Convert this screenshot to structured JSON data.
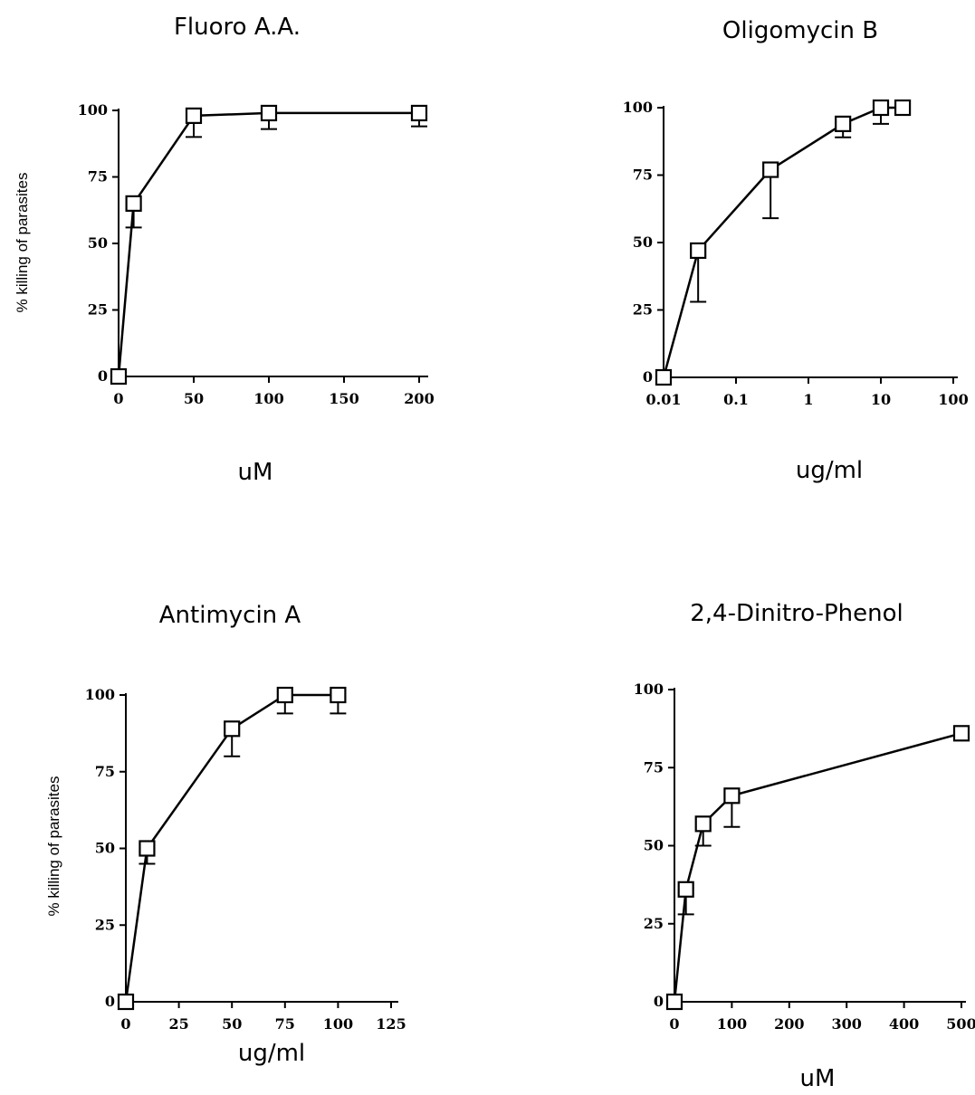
{
  "chart_data": [
    {
      "type": "line",
      "title": "Fluoro A.A.",
      "xlabel": "uM",
      "ylabel": "% killing of parasites",
      "xscale": "linear",
      "xticks": [
        "0",
        "50",
        "100",
        "150",
        "200"
      ],
      "xtick_values": [
        0,
        50,
        100,
        150,
        200
      ],
      "yticks": [
        "0",
        "25",
        "50",
        "75",
        "100"
      ],
      "ytick_values": [
        0,
        25,
        50,
        75,
        100
      ],
      "xlim": [
        0,
        200
      ],
      "ylim": [
        0,
        100
      ],
      "grid": false,
      "marker": "open-square",
      "series": [
        {
          "x": [
            0,
            10,
            50,
            100,
            200
          ],
          "y": [
            0,
            65,
            98,
            99,
            99
          ],
          "error_low": [
            0,
            56,
            90,
            93,
            94
          ]
        }
      ]
    },
    {
      "type": "line",
      "title": "Oligomycin B",
      "xlabel": "ug/ml",
      "ylabel": "",
      "xscale": "log",
      "xticks": [
        "0.01",
        "0.1",
        "1",
        "10",
        "100"
      ],
      "xtick_values": [
        0.01,
        0.1,
        1,
        10,
        100
      ],
      "yticks": [
        "0",
        "25",
        "50",
        "75",
        "100"
      ],
      "ytick_values": [
        0,
        25,
        50,
        75,
        100
      ],
      "xlim": [
        0.01,
        100
      ],
      "ylim": [
        0,
        100
      ],
      "grid": false,
      "marker": "open-square",
      "series": [
        {
          "x": [
            0.01,
            0.03,
            0.3,
            3,
            10,
            20
          ],
          "y": [
            0,
            47,
            77,
            94,
            100,
            100
          ],
          "error_low": [
            0,
            28,
            59,
            89,
            94,
            100
          ]
        }
      ]
    },
    {
      "type": "line",
      "title": "Antimycin A",
      "xlabel": "ug/ml",
      "ylabel": "% killing of parasites",
      "xscale": "linear",
      "xticks": [
        "0",
        "25",
        "50",
        "75",
        "100",
        "125"
      ],
      "xtick_values": [
        0,
        25,
        50,
        75,
        100,
        125
      ],
      "yticks": [
        "0",
        "25",
        "50",
        "75",
        "100"
      ],
      "ytick_values": [
        0,
        25,
        50,
        75,
        100
      ],
      "xlim": [
        0,
        125
      ],
      "ylim": [
        0,
        100
      ],
      "grid": false,
      "marker": "open-square",
      "series": [
        {
          "x": [
            0,
            10,
            50,
            75,
            100
          ],
          "y": [
            0,
            50,
            89,
            100,
            100
          ],
          "error_low": [
            0,
            45,
            80,
            94,
            94
          ]
        }
      ]
    },
    {
      "type": "line",
      "title": "2,4-Dinitro-Phenol",
      "xlabel": "uM",
      "ylabel": "",
      "xscale": "linear",
      "xticks": [
        "0",
        "100",
        "200",
        "300",
        "400",
        "500"
      ],
      "xtick_values": [
        0,
        100,
        200,
        300,
        400,
        500
      ],
      "yticks": [
        "0",
        "25",
        "50",
        "75",
        "100"
      ],
      "ytick_values": [
        0,
        25,
        50,
        75,
        100
      ],
      "xlim": [
        0,
        500
      ],
      "ylim": [
        0,
        100
      ],
      "grid": false,
      "marker": "open-square",
      "series": [
        {
          "x": [
            0,
            20,
            50,
            100,
            500
          ],
          "y": [
            0,
            36,
            57,
            66,
            86
          ],
          "error_low": [
            0,
            28,
            50,
            56,
            86
          ]
        }
      ]
    }
  ]
}
